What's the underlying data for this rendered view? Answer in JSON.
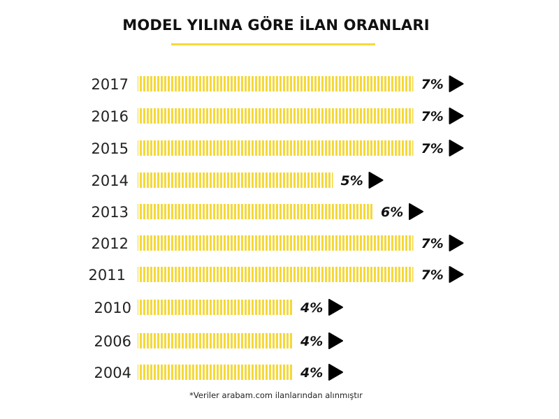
{
  "colors": {
    "accent": "#f5d83a",
    "text": "#111111",
    "arrow": "#000000"
  },
  "title": "MODEL YILINA GÖRE İLAN ORANLARI",
  "footnote": "*Veriler arabam.com ilanlarından alınmıştır",
  "chart_data": {
    "type": "bar",
    "orientation": "horizontal",
    "title": "MODEL YILINA GÖRE İLAN ORANLARI",
    "categories": [
      "2017",
      "2016",
      "2015",
      "2014",
      "2013",
      "2012",
      "2011",
      "2010",
      "2006",
      "2004"
    ],
    "values": [
      7,
      7,
      7,
      5,
      6,
      7,
      7,
      4,
      4,
      4
    ],
    "value_labels": [
      "7%",
      "7%",
      "7%",
      "5%",
      "6%",
      "7%",
      "7%",
      "4%",
      "4%",
      "4%"
    ],
    "unit": "%",
    "grid": false,
    "legend": "none"
  }
}
